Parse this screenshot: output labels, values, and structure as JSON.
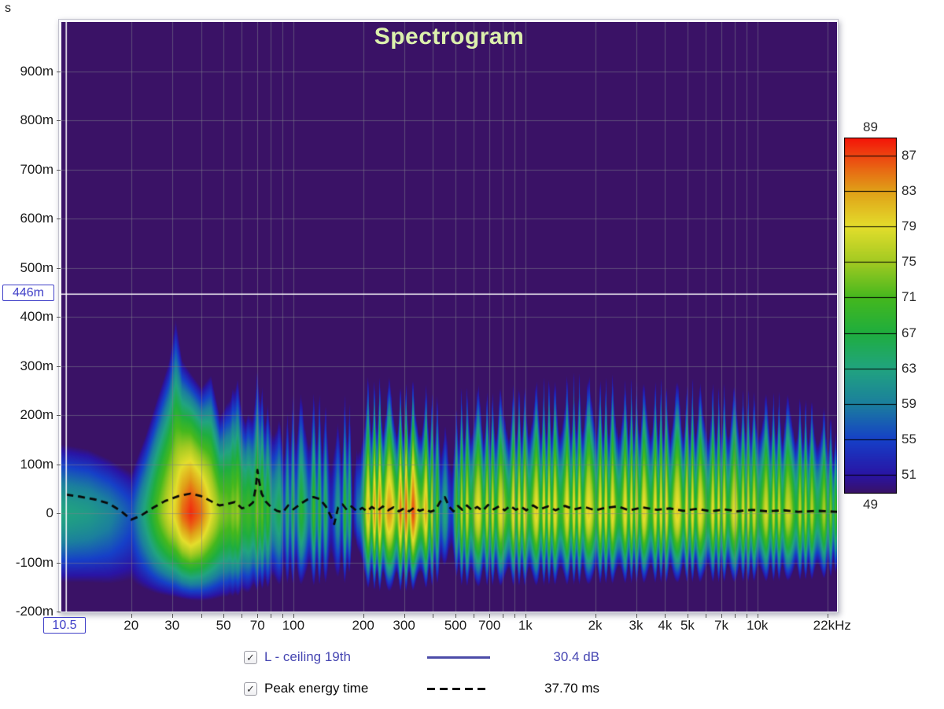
{
  "title": "Spectrogram",
  "y_axis": {
    "unit": "s",
    "ticks": [
      {
        "label": "900m",
        "t": 900
      },
      {
        "label": "800m",
        "t": 800
      },
      {
        "label": "700m",
        "t": 700
      },
      {
        "label": "600m",
        "t": 600
      },
      {
        "label": "500m",
        "t": 500
      },
      {
        "label": "400m",
        "t": 400
      },
      {
        "label": "300m",
        "t": 300
      },
      {
        "label": "200m",
        "t": 200
      },
      {
        "label": "100m",
        "t": 100
      },
      {
        "label": "0",
        "t": 0
      },
      {
        "label": "-100m",
        "t": -100
      },
      {
        "label": "-200m",
        "t": -200
      }
    ],
    "cursor": {
      "label": "446m",
      "t": 446
    }
  },
  "x_axis": {
    "ticks": [
      {
        "label": "20",
        "f": 20
      },
      {
        "label": "30",
        "f": 30
      },
      {
        "label": "50",
        "f": 50
      },
      {
        "label": "70",
        "f": 70
      },
      {
        "label": "100",
        "f": 100
      },
      {
        "label": "200",
        "f": 200
      },
      {
        "label": "300",
        "f": 300
      },
      {
        "label": "500",
        "f": 500
      },
      {
        "label": "700",
        "f": 700
      },
      {
        "label": "1k",
        "f": 1000
      },
      {
        "label": "2k",
        "f": 2000
      },
      {
        "label": "3k",
        "f": 3000
      },
      {
        "label": "4k",
        "f": 4000
      },
      {
        "label": "5k",
        "f": 5000
      },
      {
        "label": "7k",
        "f": 7000
      },
      {
        "label": "10k",
        "f": 10000
      },
      {
        "label": "22kHz",
        "f": 21000
      }
    ],
    "cursor": {
      "label": "10.5",
      "f": 10.5
    }
  },
  "colorbar": {
    "max_label": "89",
    "min_label": "49",
    "boundaries": [
      {
        "label": "87",
        "v": 87
      },
      {
        "label": "83",
        "v": 83
      },
      {
        "label": "79",
        "v": 79
      },
      {
        "label": "75",
        "v": 75
      },
      {
        "label": "71",
        "v": 71
      },
      {
        "label": "67",
        "v": 67
      },
      {
        "label": "63",
        "v": 63
      },
      {
        "label": "59",
        "v": 59
      },
      {
        "label": "55",
        "v": 55
      },
      {
        "label": "51",
        "v": 51
      }
    ],
    "range": [
      49,
      89
    ]
  },
  "legend": [
    {
      "label": "L - ceiling 19th",
      "value": "30.4 dB",
      "checked": "✓",
      "line": "solid",
      "color": "#4c4ca8",
      "text_color": "#4646b2"
    },
    {
      "label": "Peak energy time",
      "value": "37.70 ms",
      "checked": "✓",
      "line": "dashed",
      "color": "#0a0a0a",
      "text_color": "#0a0a0a"
    }
  ],
  "chart_data": {
    "type": "heatmap",
    "title": "Spectrogram",
    "x_scale": "log",
    "freq_range_hz": [
      10,
      22050
    ],
    "time_range_ms": [
      -200,
      1000
    ],
    "level_range_db": [
      49,
      89
    ],
    "background_db_floor": 49,
    "colormap_stops": [
      [
        49,
        "#3a1266"
      ],
      [
        51,
        "#2a14a4"
      ],
      [
        55,
        "#1640c8"
      ],
      [
        59,
        "#1b7f9e"
      ],
      [
        63,
        "#21a480"
      ],
      [
        67,
        "#1fae3f"
      ],
      [
        71,
        "#45b81e"
      ],
      [
        75,
        "#a2ca22"
      ],
      [
        79,
        "#e4de2c"
      ],
      [
        83,
        "#e0a018"
      ],
      [
        87,
        "#ee4511"
      ],
      [
        89,
        "#f51408"
      ]
    ],
    "envelope_anchors_freq_peakdb_topms_botms": [
      [
        10,
        63,
        160,
        -160
      ],
      [
        13,
        62,
        150,
        -162
      ],
      [
        16,
        60,
        130,
        -168
      ],
      [
        20,
        56,
        105,
        -172
      ],
      [
        23,
        64,
        180,
        -175
      ],
      [
        26,
        72,
        260,
        -178
      ],
      [
        29,
        78,
        330,
        -180
      ],
      [
        31,
        80,
        420,
        -182
      ],
      [
        33,
        85,
        330,
        -184
      ],
      [
        36,
        88,
        300,
        -186
      ],
      [
        40,
        85,
        270,
        -188
      ],
      [
        44,
        79,
        300,
        -188
      ],
      [
        48,
        74,
        215,
        -186
      ],
      [
        52,
        73,
        245,
        -184
      ],
      [
        57,
        75,
        295,
        -182
      ],
      [
        62,
        70,
        205,
        -178
      ],
      [
        66,
        71,
        225,
        -174
      ],
      [
        70,
        74,
        310,
        -170
      ],
      [
        75,
        71,
        235,
        -168
      ],
      [
        80,
        69,
        220,
        -165
      ],
      [
        90,
        64,
        185,
        -162
      ],
      [
        100,
        67,
        245,
        -160
      ],
      [
        112,
        69,
        230,
        -160
      ],
      [
        125,
        71,
        245,
        -162
      ],
      [
        140,
        65,
        215,
        -158
      ],
      [
        155,
        62,
        185,
        -150
      ],
      [
        170,
        72,
        255,
        -160
      ],
      [
        185,
        55,
        125,
        -70
      ],
      [
        200,
        79,
        255,
        -160
      ],
      [
        230,
        85,
        260,
        -168
      ],
      [
        260,
        83,
        250,
        -168
      ],
      [
        300,
        86,
        250,
        -168
      ],
      [
        340,
        87,
        245,
        -165
      ],
      [
        380,
        81,
        240,
        -162
      ],
      [
        420,
        72,
        230,
        -155
      ],
      [
        465,
        60,
        155,
        -105
      ],
      [
        520,
        77,
        235,
        -158
      ],
      [
        600,
        80,
        245,
        -160
      ],
      [
        700,
        78,
        235,
        -158
      ],
      [
        850,
        80,
        245,
        -158
      ],
      [
        1000,
        80,
        250,
        -158
      ],
      [
        1400,
        80,
        258,
        -156
      ],
      [
        2000,
        80,
        260,
        -154
      ],
      [
        3000,
        80,
        252,
        -152
      ],
      [
        5000,
        80,
        250,
        -150
      ],
      [
        8000,
        79,
        242,
        -150
      ],
      [
        12000,
        78,
        232,
        -148
      ],
      [
        16000,
        77,
        222,
        -146
      ],
      [
        19000,
        76,
        210,
        -144
      ],
      [
        21000,
        74,
        185,
        -140
      ],
      [
        22050,
        70,
        150,
        -130
      ]
    ],
    "striation": {
      "start_hz": 48,
      "full_hz": 110,
      "level_dip_db": 11,
      "top_shrink": 0.3,
      "bottom_shrink": 0.22
    },
    "gridline_freqs_hz": [
      20,
      30,
      40,
      50,
      60,
      70,
      80,
      90,
      100,
      200,
      300,
      400,
      500,
      600,
      700,
      800,
      900,
      1000,
      2000,
      3000,
      4000,
      5000,
      6000,
      7000,
      8000,
      9000,
      10000,
      20000
    ],
    "gridline_times_ms": [
      -200,
      -100,
      0,
      100,
      200,
      300,
      400,
      500,
      600,
      700,
      800,
      900
    ],
    "cursor": {
      "freq_hz": 10.5,
      "time_ms": 446
    },
    "series": [
      {
        "name": "Peak energy time",
        "style": "dashed",
        "color": "#0a0a0a",
        "value_label": "37.70 ms",
        "points_hz_ms": [
          [
            10.5,
            38
          ],
          [
            12,
            34
          ],
          [
            14,
            28
          ],
          [
            16,
            20
          ],
          [
            18,
            5
          ],
          [
            20,
            -13
          ],
          [
            22,
            -5
          ],
          [
            25,
            12
          ],
          [
            28,
            25
          ],
          [
            32,
            35
          ],
          [
            36,
            40
          ],
          [
            40,
            35
          ],
          [
            44,
            25
          ],
          [
            48,
            16
          ],
          [
            52,
            19
          ],
          [
            56,
            23
          ],
          [
            60,
            10
          ],
          [
            64,
            14
          ],
          [
            67,
            22
          ],
          [
            69,
            55
          ],
          [
            70,
            88
          ],
          [
            71,
            68
          ],
          [
            73,
            40
          ],
          [
            76,
            24
          ],
          [
            80,
            13
          ],
          [
            85,
            5
          ],
          [
            90,
            2
          ],
          [
            95,
            16
          ],
          [
            100,
            8
          ],
          [
            108,
            20
          ],
          [
            115,
            28
          ],
          [
            122,
            33
          ],
          [
            130,
            29
          ],
          [
            138,
            14
          ],
          [
            145,
            -6
          ],
          [
            150,
            -22
          ],
          [
            156,
            12
          ],
          [
            163,
            18
          ],
          [
            170,
            7
          ],
          [
            178,
            14
          ],
          [
            188,
            4
          ],
          [
            198,
            11
          ],
          [
            208,
            4
          ],
          [
            218,
            13
          ],
          [
            230,
            5
          ],
          [
            243,
            14
          ],
          [
            256,
            6
          ],
          [
            270,
            12
          ],
          [
            285,
            4
          ],
          [
            300,
            10
          ],
          [
            316,
            4
          ],
          [
            333,
            12
          ],
          [
            350,
            5
          ],
          [
            370,
            9
          ],
          [
            390,
            3
          ],
          [
            410,
            7
          ],
          [
            430,
            24
          ],
          [
            450,
            33
          ],
          [
            468,
            14
          ],
          [
            490,
            4
          ],
          [
            512,
            15
          ],
          [
            535,
            7
          ],
          [
            560,
            16
          ],
          [
            590,
            6
          ],
          [
            620,
            13
          ],
          [
            655,
            5
          ],
          [
            690,
            17
          ],
          [
            730,
            8
          ],
          [
            770,
            14
          ],
          [
            815,
            6
          ],
          [
            860,
            15
          ],
          [
            910,
            7
          ],
          [
            960,
            13
          ],
          [
            1010,
            6
          ],
          [
            1080,
            16
          ],
          [
            1150,
            8
          ],
          [
            1250,
            14
          ],
          [
            1350,
            6
          ],
          [
            1480,
            15
          ],
          [
            1620,
            8
          ],
          [
            1800,
            13
          ],
          [
            2000,
            6
          ],
          [
            2200,
            11
          ],
          [
            2500,
            14
          ],
          [
            2800,
            6
          ],
          [
            3200,
            12
          ],
          [
            3700,
            7
          ],
          [
            4200,
            10
          ],
          [
            4800,
            5
          ],
          [
            5500,
            9
          ],
          [
            6300,
            4
          ],
          [
            7200,
            8
          ],
          [
            8200,
            4
          ],
          [
            9500,
            7
          ],
          [
            11000,
            4
          ],
          [
            13000,
            6
          ],
          [
            15000,
            3
          ],
          [
            18000,
            5
          ],
          [
            22050,
            3
          ]
        ]
      },
      {
        "name": "L - ceiling 19th",
        "style": "solid",
        "color": "#4c4ca8",
        "value_label": "30.4 dB",
        "points_hz_ms": []
      }
    ]
  }
}
